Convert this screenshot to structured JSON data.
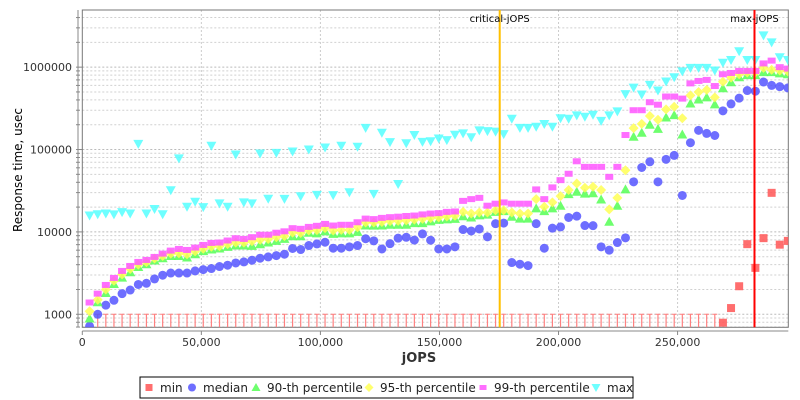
{
  "chart_data": {
    "type": "scatter",
    "title": "",
    "xlabel": "jOPS",
    "ylabel": "Response time, usec",
    "xlim": [
      0,
      296500
    ],
    "ylim": [
      695,
      4940000
    ],
    "yscale": "log",
    "grid": true,
    "legend_position": "bottom",
    "x_ticks": [
      {
        "value": 0,
        "label": "0"
      },
      {
        "value": 50000,
        "label": "50,000"
      },
      {
        "value": 100000,
        "label": "100,000"
      },
      {
        "value": 150000,
        "label": "150,000"
      },
      {
        "value": 200000,
        "label": "200,000"
      },
      {
        "value": 250000,
        "label": "250,000"
      }
    ],
    "y_ticks": [
      {
        "value": 1000,
        "label": "1000"
      },
      {
        "value": 10000,
        "label": "10000"
      },
      {
        "value": 100000,
        "label": "100000"
      },
      {
        "value": 1000000,
        "label": "1000000"
      }
    ],
    "markers": [
      {
        "label": "critical-jOPS",
        "x": 175300,
        "color": "#ffc000"
      },
      {
        "label": "max-jOPS",
        "x": 282300,
        "color": "#ff0000"
      }
    ],
    "x": [
      3060,
      6470,
      9880,
      13290,
      16700,
      20110,
      23520,
      26930,
      30340,
      33750,
      37160,
      40570,
      43980,
      47390,
      50800,
      54210,
      57620,
      61030,
      64440,
      67850,
      71260,
      74670,
      78080,
      81490,
      84900,
      88310,
      91720,
      95130,
      98540,
      101950,
      105360,
      108770,
      112180,
      115590,
      119000,
      122410,
      125820,
      129230,
      132640,
      136050,
      139460,
      142870,
      146280,
      149690,
      153100,
      156510,
      159920,
      163330,
      166740,
      170150,
      173560,
      176970,
      180380,
      183790,
      187200,
      190610,
      194020,
      197430,
      200840,
      204250,
      207660,
      211070,
      214480,
      217890,
      221300,
      224710,
      228120,
      231530,
      234940,
      238350,
      241760,
      245170,
      248580,
      251990,
      255400,
      258810,
      262220,
      265630,
      269040,
      272450,
      275860,
      279270,
      282680,
      286090,
      289500,
      292910,
      296320
    ],
    "series": [
      {
        "name": "min",
        "marker": "square",
        "color": "#ff5555",
        "values": [
          null,
          null,
          null,
          null,
          null,
          null,
          null,
          null,
          null,
          null,
          null,
          null,
          null,
          null,
          null,
          null,
          null,
          null,
          null,
          null,
          null,
          null,
          null,
          null,
          null,
          null,
          null,
          null,
          null,
          null,
          null,
          null,
          null,
          null,
          null,
          null,
          null,
          null,
          null,
          null,
          null,
          null,
          null,
          null,
          null,
          null,
          null,
          null,
          null,
          null,
          null,
          null,
          null,
          null,
          null,
          null,
          null,
          null,
          null,
          null,
          null,
          null,
          null,
          null,
          null,
          null,
          null,
          null,
          null,
          null,
          null,
          null,
          null,
          null,
          null,
          null,
          null,
          null,
          790,
          1190,
          2190,
          7100,
          3660,
          8400,
          29800,
          7000,
          7780
        ]
      },
      {
        "name": "median",
        "marker": "circle",
        "color": "#5555ff",
        "values": [
          715,
          1000,
          1290,
          1480,
          1780,
          1970,
          2300,
          2380,
          2690,
          2980,
          3170,
          3170,
          3170,
          3360,
          3490,
          3590,
          3800,
          3940,
          4200,
          4320,
          4530,
          4790,
          4970,
          5160,
          5360,
          6290,
          6110,
          6830,
          7150,
          7490,
          6340,
          6340,
          6590,
          6830,
          8270,
          7790,
          6210,
          7200,
          8390,
          8600,
          7950,
          9450,
          7920,
          6210,
          6210,
          6590,
          10680,
          10270,
          10850,
          8710,
          12600,
          12800,
          4250,
          4050,
          3900,
          12600,
          6340,
          11100,
          11500,
          14960,
          15540,
          11950,
          11900,
          6590,
          6000,
          7430,
          8470,
          40500,
          60500,
          71000,
          40500,
          76000,
          84800,
          27700,
          121000,
          171000,
          157000,
          148000,
          295000,
          358000,
          420000,
          520000,
          510000,
          660000,
          600000,
          580000,
          560000
        ]
      },
      {
        "name": "90-th percentile",
        "marker": "triangle-up",
        "color": "#55ff55",
        "values": [
          890,
          1400,
          1810,
          2330,
          2790,
          3240,
          3750,
          4050,
          4500,
          4790,
          5100,
          5100,
          4890,
          5360,
          5840,
          6110,
          6290,
          6590,
          6830,
          6830,
          6760,
          7080,
          7430,
          7790,
          8220,
          8850,
          8850,
          9770,
          9600,
          10160,
          9460,
          9600,
          9600,
          10000,
          11950,
          11900,
          11950,
          12200,
          12200,
          12200,
          12800,
          12800,
          13400,
          14000,
          14200,
          14400,
          15500,
          14960,
          15900,
          16200,
          17500,
          17900,
          15300,
          14500,
          14500,
          19300,
          17900,
          19300,
          20800,
          28700,
          30700,
          29200,
          29500,
          24700,
          13300,
          20800,
          32800,
          143000,
          160000,
          200000,
          178000,
          245000,
          262000,
          152000,
          362000,
          405000,
          430000,
          353000,
          555000,
          655000,
          755000,
          800000,
          800000,
          870000,
          870000,
          840000,
          820000
        ]
      },
      {
        "name": "95-th percentile",
        "marker": "diamond",
        "color": "#ffff55",
        "values": [
          1090,
          1500,
          2000,
          2550,
          3050,
          3550,
          4000,
          4300,
          4750,
          5100,
          5450,
          5500,
          5350,
          5800,
          6250,
          6600,
          6700,
          7100,
          7400,
          7400,
          7700,
          8000,
          8200,
          8600,
          8900,
          9800,
          9700,
          10400,
          10500,
          11100,
          10400,
          10600,
          10600,
          11400,
          13000,
          13000,
          13200,
          13500,
          13600,
          13800,
          14100,
          14400,
          14700,
          15000,
          15400,
          15700,
          17500,
          16700,
          17200,
          17200,
          18300,
          18300,
          17200,
          16700,
          16700,
          25000,
          20200,
          22800,
          27200,
          32300,
          38700,
          34300,
          35300,
          32300,
          18800,
          25900,
          56000,
          182000,
          205000,
          255000,
          230000,
          307000,
          330000,
          240000,
          455000,
          500000,
          530000,
          430000,
          665000,
          745000,
          820000,
          860000,
          860000,
          980000,
          930000,
          910000,
          890000
        ]
      },
      {
        "name": "99-th percentile",
        "marker": "plus-square",
        "color": "#ff55ff",
        "values": [
          1390,
          1780,
          2270,
          2760,
          3360,
          3860,
          4320,
          4570,
          4970,
          5450,
          5930,
          6210,
          6040,
          6450,
          6950,
          7350,
          7430,
          7860,
          8380,
          8220,
          8630,
          9240,
          9240,
          9770,
          10160,
          11100,
          10900,
          11500,
          11850,
          12500,
          11950,
          12200,
          12200,
          13100,
          14500,
          14300,
          14800,
          15100,
          15300,
          15600,
          15800,
          16300,
          16700,
          16900,
          17500,
          17700,
          23800,
          25000,
          25900,
          20800,
          22000,
          22800,
          22000,
          22000,
          22000,
          32800,
          25000,
          34700,
          42500,
          50800,
          72000,
          61600,
          61600,
          61600,
          46600,
          61600,
          150000,
          300000,
          300000,
          375000,
          350000,
          440000,
          440000,
          415000,
          635000,
          680000,
          700000,
          590000,
          820000,
          850000,
          900000,
          900000,
          900000,
          1110000,
          1200000,
          1000000,
          960000
        ]
      },
      {
        "name": "max",
        "marker": "triangle-down",
        "color": "#55ffff",
        "values": [
          15800,
          16400,
          16700,
          16300,
          17400,
          16700,
          117000,
          16700,
          19000,
          16400,
          32000,
          78000,
          20200,
          23200,
          20000,
          111000,
          22200,
          20200,
          87000,
          22800,
          22200,
          89600,
          25300,
          91000,
          25200,
          94700,
          27100,
          100000,
          28200,
          106000,
          28000,
          111000,
          30300,
          108000,
          183000,
          29000,
          160000,
          123000,
          38200,
          119000,
          150000,
          124000,
          126000,
          136000,
          130000,
          151000,
          157000,
          141000,
          171000,
          167000,
          165000,
          154000,
          236000,
          183000,
          183000,
          189000,
          204000,
          189000,
          240000,
          236000,
          260000,
          250000,
          264000,
          223000,
          260000,
          290000,
          470000,
          565000,
          465000,
          610000,
          520000,
          670000,
          755000,
          890000,
          980000,
          980000,
          980000,
          910000,
          1130000,
          1220000,
          1560000,
          1220000,
          1220000,
          2430000,
          2000000,
          1320000,
          1220000
        ]
      }
    ]
  }
}
